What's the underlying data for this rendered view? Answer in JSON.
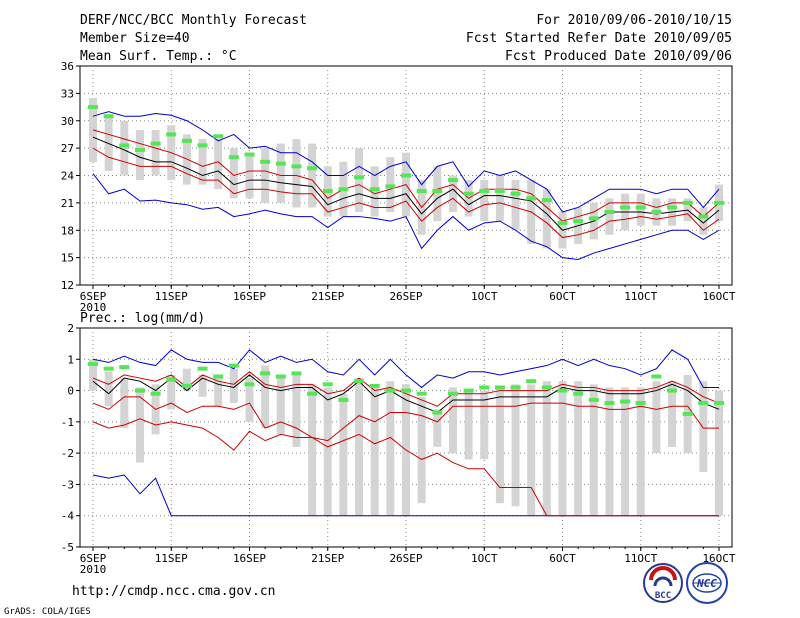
{
  "header": {
    "title": "DERF/NCC/BCC Monthly Forecast",
    "member_size": "Member Size=40",
    "variable": "Mean Surf. Temp.: °C",
    "for_range": "For 2010/09/06-2010/10/15",
    "started_date": "Fcst Started Refer Date 2010/09/05",
    "produced_date": "Fcst Produced Date 2010/09/06"
  },
  "footer": {
    "url": "http://cmdp.ncc.cma.gov.cn",
    "grads_credit": "GrADS: COLA/IGES",
    "logo_bcc_text": "BCC",
    "logo_ncc_text": "NCC"
  },
  "colors": {
    "max_min": "#0000cc",
    "ensemble_spread": "#cc0000",
    "ensemble_mean": "#000000",
    "box": "#d4d4d4",
    "observed_marker": "#55e655",
    "grid": "#888888"
  },
  "chart_data": [
    {
      "type": "box_timeseries",
      "title": "Mean Surf. Temp.: °C",
      "ylim": [
        12,
        36
      ],
      "yticks": [
        12,
        15,
        18,
        21,
        24,
        27,
        30,
        33,
        36
      ],
      "xlabel_ticks": [
        {
          "day": 0,
          "label": "6SEP",
          "sub": "2010"
        },
        {
          "day": 5,
          "label": "11SEP"
        },
        {
          "day": 10,
          "label": "16SEP"
        },
        {
          "day": 15,
          "label": "21SEP"
        },
        {
          "day": 20,
          "label": "26SEP"
        },
        {
          "day": 25,
          "label": "1OCT"
        },
        {
          "day": 30,
          "label": "6OCT"
        },
        {
          "day": 35,
          "label": "11OCT"
        },
        {
          "day": 40,
          "label": "16OCT"
        }
      ],
      "box_top": [
        32.5,
        30.5,
        30.0,
        29.0,
        29.0,
        29.5,
        28.5,
        28.0,
        28.0,
        27.0,
        26.5,
        27.0,
        27.5,
        28.0,
        27.5,
        25.0,
        25.5,
        27.0,
        25.0,
        26.0,
        26.5,
        23.5,
        25.0,
        24.0,
        23.5,
        23.5,
        24.0,
        23.5,
        23.5,
        22.5,
        20.0,
        20.5,
        21.0,
        21.5,
        22.0,
        22.0,
        21.5,
        21.5,
        21.5,
        20.5,
        23.0
      ],
      "box_bottom": [
        25.5,
        24.5,
        24.0,
        23.5,
        24.0,
        23.5,
        23.0,
        23.0,
        22.5,
        21.5,
        21.5,
        21.0,
        21.0,
        20.5,
        20.5,
        19.5,
        19.5,
        20.0,
        19.5,
        20.0,
        19.5,
        17.5,
        19.0,
        20.0,
        19.5,
        19.0,
        19.0,
        18.0,
        16.5,
        16.0,
        16.0,
        16.5,
        17.0,
        17.5,
        18.0,
        18.5,
        18.5,
        18.5,
        19.0,
        17.5,
        19.0
      ],
      "max": [
        30.5,
        31.0,
        30.5,
        30.5,
        30.8,
        30.6,
        30.0,
        29.0,
        27.8,
        28.5,
        27.0,
        27.2,
        26.5,
        26.5,
        25.5,
        24.0,
        24.0,
        25.0,
        24.0,
        25.0,
        25.5,
        23.0,
        25.0,
        25.5,
        22.8,
        24.5,
        24.0,
        24.5,
        23.5,
        22.5,
        20.0,
        20.5,
        21.5,
        22.5,
        22.5,
        22.5,
        22.0,
        22.5,
        22.5,
        20.5,
        22.5
      ],
      "spread_upper": [
        29.0,
        28.5,
        28.0,
        27.5,
        27.0,
        26.5,
        25.8,
        25.0,
        25.5,
        24.0,
        24.5,
        24.5,
        24.0,
        24.0,
        23.5,
        21.5,
        22.5,
        23.0,
        22.0,
        22.5,
        23.0,
        20.5,
        22.5,
        23.0,
        21.5,
        22.5,
        22.5,
        22.5,
        22.0,
        20.5,
        19.0,
        19.5,
        20.0,
        21.0,
        21.0,
        21.0,
        20.5,
        21.0,
        21.0,
        19.5,
        21.0
      ],
      "mean": [
        28.2,
        27.5,
        26.8,
        26.0,
        25.5,
        25.5,
        24.8,
        24.0,
        24.5,
        23.0,
        23.5,
        23.5,
        23.2,
        23.0,
        22.8,
        20.8,
        21.5,
        22.0,
        21.5,
        21.5,
        22.0,
        19.8,
        21.5,
        22.5,
        20.8,
        21.8,
        21.8,
        21.5,
        21.2,
        19.8,
        18.0,
        18.5,
        19.0,
        20.0,
        20.0,
        20.0,
        19.8,
        20.0,
        20.2,
        18.8,
        20.2
      ],
      "spread_lower": [
        27.0,
        26.0,
        25.5,
        25.0,
        25.0,
        25.0,
        24.2,
        23.5,
        23.5,
        22.0,
        22.5,
        22.5,
        22.2,
        22.0,
        22.0,
        20.0,
        20.5,
        21.0,
        20.5,
        20.5,
        21.2,
        19.0,
        20.5,
        21.5,
        20.0,
        20.8,
        21.0,
        20.5,
        20.0,
        18.8,
        17.2,
        17.5,
        18.0,
        19.0,
        19.2,
        19.5,
        19.2,
        19.5,
        19.8,
        18.0,
        19.2
      ],
      "min": [
        24.2,
        22.0,
        22.5,
        21.2,
        21.3,
        21.0,
        20.8,
        20.3,
        20.5,
        19.5,
        19.8,
        20.2,
        19.8,
        19.5,
        19.5,
        18.3,
        19.5,
        19.5,
        19.3,
        19.0,
        19.5,
        16.0,
        18.0,
        19.5,
        18.0,
        18.8,
        19.0,
        18.0,
        16.8,
        16.2,
        15.0,
        14.8,
        15.5,
        16.0,
        16.5,
        17.0,
        17.5,
        18.0,
        18.0,
        17.0,
        18.0
      ],
      "observed": [
        31.5,
        30.5,
        27.3,
        26.8,
        27.5,
        28.5,
        27.8,
        27.3,
        28.3,
        26.0,
        26.3,
        25.5,
        25.3,
        25.0,
        24.8,
        22.3,
        22.5,
        23.8,
        22.5,
        22.8,
        24.0,
        22.3,
        22.3,
        23.5,
        22.0,
        22.3,
        22.3,
        22.0,
        21.5,
        21.3,
        18.8,
        19.0,
        19.3,
        20.0,
        20.5,
        20.5,
        20.0,
        20.5,
        21.0,
        19.5,
        21.0
      ]
    },
    {
      "type": "box_timeseries",
      "title": "Prec.: log(mm/d)",
      "ylim": [
        -5,
        2
      ],
      "yticks": [
        -5,
        -4,
        -3,
        -2,
        -1,
        0,
        1,
        2
      ],
      "xlabel_ticks": [
        {
          "day": 0,
          "label": "6SEP",
          "sub": "2010"
        },
        {
          "day": 5,
          "label": "11SEP"
        },
        {
          "day": 10,
          "label": "16SEP"
        },
        {
          "day": 15,
          "label": "21SEP"
        },
        {
          "day": 20,
          "label": "26SEP"
        },
        {
          "day": 25,
          "label": "1OCT"
        },
        {
          "day": 30,
          "label": "6OCT"
        },
        {
          "day": 35,
          "label": "11OCT"
        },
        {
          "day": 40,
          "label": "16OCT"
        }
      ],
      "box_top": [
        1.0,
        0.6,
        0.4,
        0.1,
        0.2,
        0.5,
        0.7,
        0.5,
        0.4,
        0.7,
        0.4,
        0.8,
        0.5,
        0.5,
        0.2,
        0.1,
        -0.1,
        0.4,
        0.1,
        0.3,
        0.2,
        -0.2,
        -0.6,
        0.1,
        0.0,
        0.0,
        0.1,
        0.2,
        0.2,
        0.3,
        0.3,
        0.3,
        0.2,
        0.1,
        0.1,
        0.1,
        0.3,
        0.3,
        0.5,
        0.3,
        0.0
      ],
      "box_bottom": [
        0.0,
        -0.5,
        -1.2,
        -2.3,
        -1.4,
        -0.6,
        0.0,
        -0.2,
        -0.5,
        -0.4,
        -1.0,
        -1.2,
        -1.4,
        -1.8,
        -4.0,
        -4.0,
        -4.0,
        -4.0,
        -4.0,
        -4.0,
        -4.0,
        -3.6,
        -1.8,
        -2.0,
        -2.2,
        -2.2,
        -3.6,
        -3.7,
        -4.0,
        -4.0,
        -4.0,
        -4.0,
        -4.0,
        -4.0,
        -4.0,
        -4.0,
        -2.0,
        -1.8,
        -2.0,
        -2.6,
        -4.0
      ],
      "max": [
        1.0,
        0.9,
        1.1,
        0.9,
        0.8,
        1.3,
        1.0,
        0.9,
        0.9,
        0.7,
        1.3,
        0.9,
        1.1,
        0.9,
        1.0,
        0.6,
        0.5,
        1.0,
        0.5,
        1.0,
        0.5,
        0.1,
        0.5,
        0.4,
        0.6,
        0.6,
        0.5,
        0.6,
        0.7,
        0.8,
        1.0,
        0.8,
        1.0,
        0.8,
        0.7,
        0.5,
        0.7,
        1.3,
        1.0,
        0.1,
        0.1
      ],
      "spread_upper": [
        0.4,
        0.2,
        0.5,
        0.4,
        0.3,
        0.5,
        0.1,
        0.5,
        0.3,
        0.2,
        0.6,
        0.2,
        0.1,
        0.2,
        0.2,
        -0.1,
        0.0,
        0.4,
        0.0,
        0.1,
        -0.1,
        -0.3,
        -0.5,
        -0.1,
        -0.1,
        -0.1,
        0.0,
        0.0,
        0.0,
        0.0,
        0.2,
        0.1,
        0.1,
        0.0,
        0.0,
        0.0,
        0.1,
        0.3,
        0.1,
        -0.2,
        -0.4
      ],
      "mean": [
        0.3,
        -0.1,
        0.4,
        0.3,
        0.0,
        0.4,
        0.0,
        0.4,
        0.2,
        0.1,
        0.5,
        0.1,
        0.0,
        0.1,
        0.1,
        -0.3,
        -0.1,
        0.3,
        -0.2,
        0.0,
        -0.3,
        -0.5,
        -0.7,
        -0.3,
        -0.3,
        -0.3,
        -0.2,
        -0.2,
        -0.2,
        -0.2,
        0.1,
        0.0,
        0.0,
        -0.1,
        -0.1,
        -0.1,
        0.0,
        0.2,
        0.0,
        -0.4,
        -0.6
      ],
      "spread_lower": [
        -0.4,
        -0.6,
        -0.2,
        -0.2,
        -0.6,
        -0.4,
        -0.7,
        -0.5,
        -0.5,
        -0.6,
        -0.4,
        -1.2,
        -1.0,
        -1.2,
        -1.5,
        -1.6,
        -1.2,
        -0.8,
        -1.0,
        -0.7,
        -0.7,
        -0.8,
        -1.0,
        -0.5,
        -0.5,
        -0.5,
        -0.5,
        -0.5,
        -0.4,
        -0.4,
        -0.4,
        -0.5,
        -0.5,
        -0.6,
        -0.6,
        -0.5,
        -0.6,
        -0.5,
        -0.5,
        -1.2,
        -1.2
      ],
      "min": [
        -2.7,
        -2.8,
        -2.7,
        -3.3,
        -2.8,
        -4.0,
        -4.0,
        -4.0,
        -4.0,
        -4.0,
        -4.0,
        -4.0,
        -4.0,
        -4.0,
        -4.0,
        -4.0,
        -4.0,
        -4.0,
        -4.0,
        -4.0,
        -4.0,
        -4.0,
        -4.0,
        -4.0,
        -4.0,
        -4.0,
        -4.0,
        -4.0,
        -4.0,
        -4.0,
        -4.0,
        -4.0,
        -4.0,
        -4.0,
        -4.0,
        -4.0,
        -4.0,
        -4.0,
        -4.0,
        -4.0,
        -4.0
      ],
      "mid_red": [
        -1.0,
        -1.2,
        -1.1,
        -0.9,
        -1.1,
        -1.0,
        -1.1,
        -1.2,
        -1.5,
        -1.9,
        -1.3,
        -1.6,
        -1.4,
        -1.5,
        -1.5,
        -1.8,
        -1.6,
        -1.4,
        -1.7,
        -1.5,
        -1.9,
        -2.2,
        -2.0,
        -2.3,
        -2.5,
        -2.5,
        -3.1,
        -3.1,
        -3.1,
        -4.0,
        -4.0,
        -4.0,
        -4.0,
        -4.0,
        -4.0,
        -4.0,
        -4.0,
        -4.0,
        -4.0,
        -4.0,
        -4.0
      ],
      "observed": [
        0.85,
        0.7,
        0.75,
        0.0,
        -0.1,
        0.35,
        0.15,
        0.7,
        0.45,
        0.8,
        0.2,
        0.55,
        0.45,
        0.55,
        -0.1,
        0.2,
        -0.3,
        0.3,
        0.15,
        0.0,
        0.0,
        -0.1,
        -0.7,
        -0.1,
        0.0,
        0.1,
        0.1,
        0.1,
        0.3,
        0.1,
        0.0,
        -0.1,
        -0.3,
        -0.4,
        -0.35,
        -0.4,
        0.45,
        0.0,
        -0.75,
        -0.4,
        -0.4
      ]
    }
  ]
}
